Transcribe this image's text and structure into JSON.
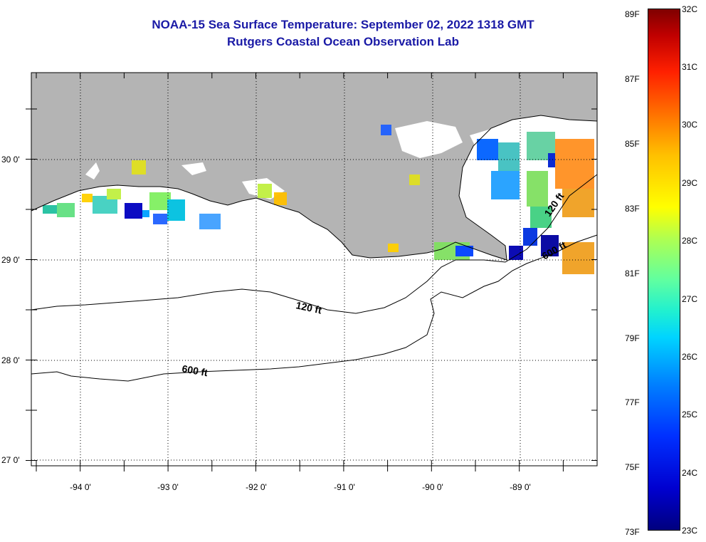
{
  "header": {
    "title": "NOAA-15 Sea Surface Temperature:  September 02, 2022 1318 GMT",
    "subtitle": "Rutgers Coastal Ocean Observation Lab"
  },
  "map": {
    "lat_labels": [
      "30 0'",
      "29 0'",
      "28 0'",
      "27 0'"
    ],
    "lon_labels": [
      "-94 0'",
      "-93 0'",
      "-92 0'",
      "-91 0'",
      "-90 0'",
      "-89 0'"
    ],
    "lat_range": [
      26.95,
      30.85
    ],
    "lon_range": [
      -94.55,
      -88.1
    ],
    "contour_labels": {
      "c120_west": "120 ft",
      "c600_west": "600 ft",
      "c120_east": "120 ft",
      "c600_east": "600 ft"
    },
    "land_color": "#b4b4b4",
    "ocean_color": "#ffffff"
  },
  "colorbar": {
    "fahrenheit": [
      "89F",
      "87F",
      "85F",
      "83F",
      "81F",
      "79F",
      "77F",
      "75F",
      "73F"
    ],
    "celsius": [
      "32C",
      "31C",
      "30C",
      "29C",
      "28C",
      "27C",
      "26C",
      "25C",
      "24C",
      "23C"
    ],
    "colors": [
      "#00007f",
      "#0000ff",
      "#00a0ff",
      "#00ffff",
      "#80ff80",
      "#ffff00",
      "#ff8000",
      "#ff0000",
      "#7f0000"
    ]
  }
}
